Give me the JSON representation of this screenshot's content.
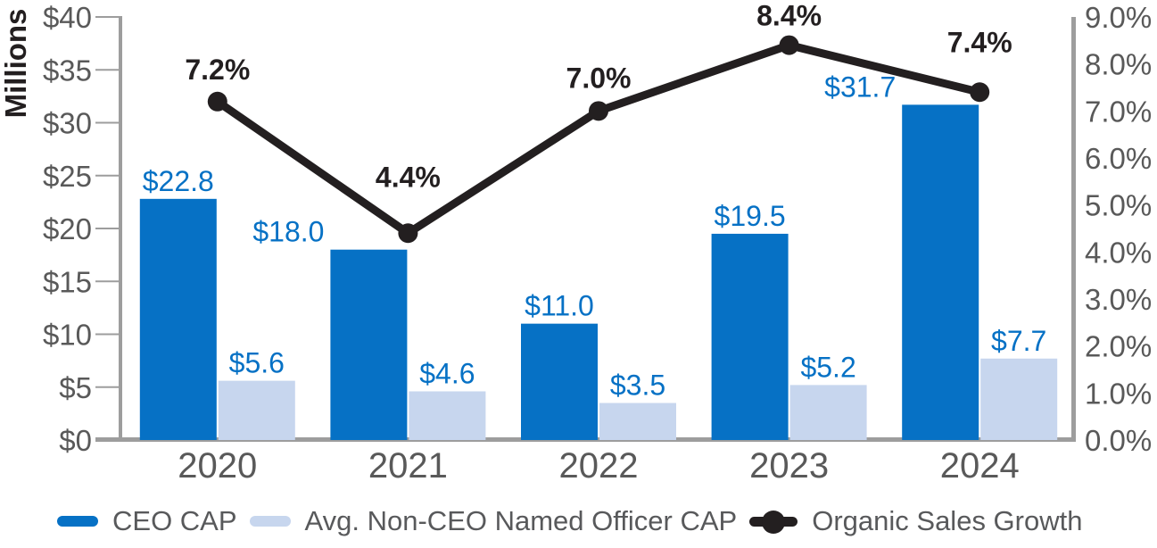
{
  "chart_data": {
    "type": "bar",
    "subtype": "grouped-bars-with-line-overlay",
    "categories": [
      "2020",
      "2021",
      "2022",
      "2023",
      "2024"
    ],
    "series": [
      {
        "name": "CEO CAP",
        "type": "bar",
        "axis": "left",
        "values": [
          22.8,
          18.0,
          11.0,
          19.5,
          31.7
        ],
        "value_labels": [
          "$22.8",
          "$18.0",
          "$11.0",
          "$19.5",
          "$31.7"
        ]
      },
      {
        "name": "Avg. Non-CEO Named Officer CAP",
        "type": "bar",
        "axis": "left",
        "values": [
          5.6,
          4.6,
          3.5,
          5.2,
          7.7
        ],
        "value_labels": [
          "$5.6",
          "$4.6",
          "$3.5",
          "$5.2",
          "$7.7"
        ]
      },
      {
        "name": "Organic Sales Growth",
        "type": "line",
        "axis": "right",
        "values": [
          7.2,
          4.4,
          7.0,
          8.4,
          7.4
        ],
        "value_labels": [
          "7.2%",
          "4.4%",
          "7.0%",
          "8.4%",
          "7.4%"
        ]
      }
    ],
    "left_axis": {
      "title": "Millions",
      "min": 0,
      "max": 40,
      "step": 5,
      "tick_labels": [
        "$0",
        "$5",
        "$10",
        "$15",
        "$20",
        "$25",
        "$30",
        "$35",
        "$40"
      ]
    },
    "right_axis": {
      "min": 0,
      "max": 9,
      "step": 1,
      "tick_labels": [
        "0.0%",
        "1.0%",
        "2.0%",
        "3.0%",
        "4.0%",
        "5.0%",
        "6.0%",
        "7.0%",
        "8.0%",
        "9.0%"
      ]
    },
    "legend": [
      {
        "label": "CEO CAP",
        "swatch": "bar-dark-blue"
      },
      {
        "label": "Avg. Non-CEO Named Officer CAP",
        "swatch": "bar-light-blue"
      },
      {
        "label": "Organic Sales Growth",
        "swatch": "line-dot-black"
      }
    ],
    "grid": false,
    "legend_position": "bottom"
  },
  "colors": {
    "ceo_bar": "#0671C5",
    "non_ceo_bar": "#C7D6EE",
    "line": "#231F20",
    "axis_line": "#9D9D9D",
    "axis_text": "#595959",
    "bar_value_text": "#0671C5",
    "line_value_text": "#231F20",
    "axis_title_text": "#231F20",
    "background": "#FFFFFF"
  }
}
